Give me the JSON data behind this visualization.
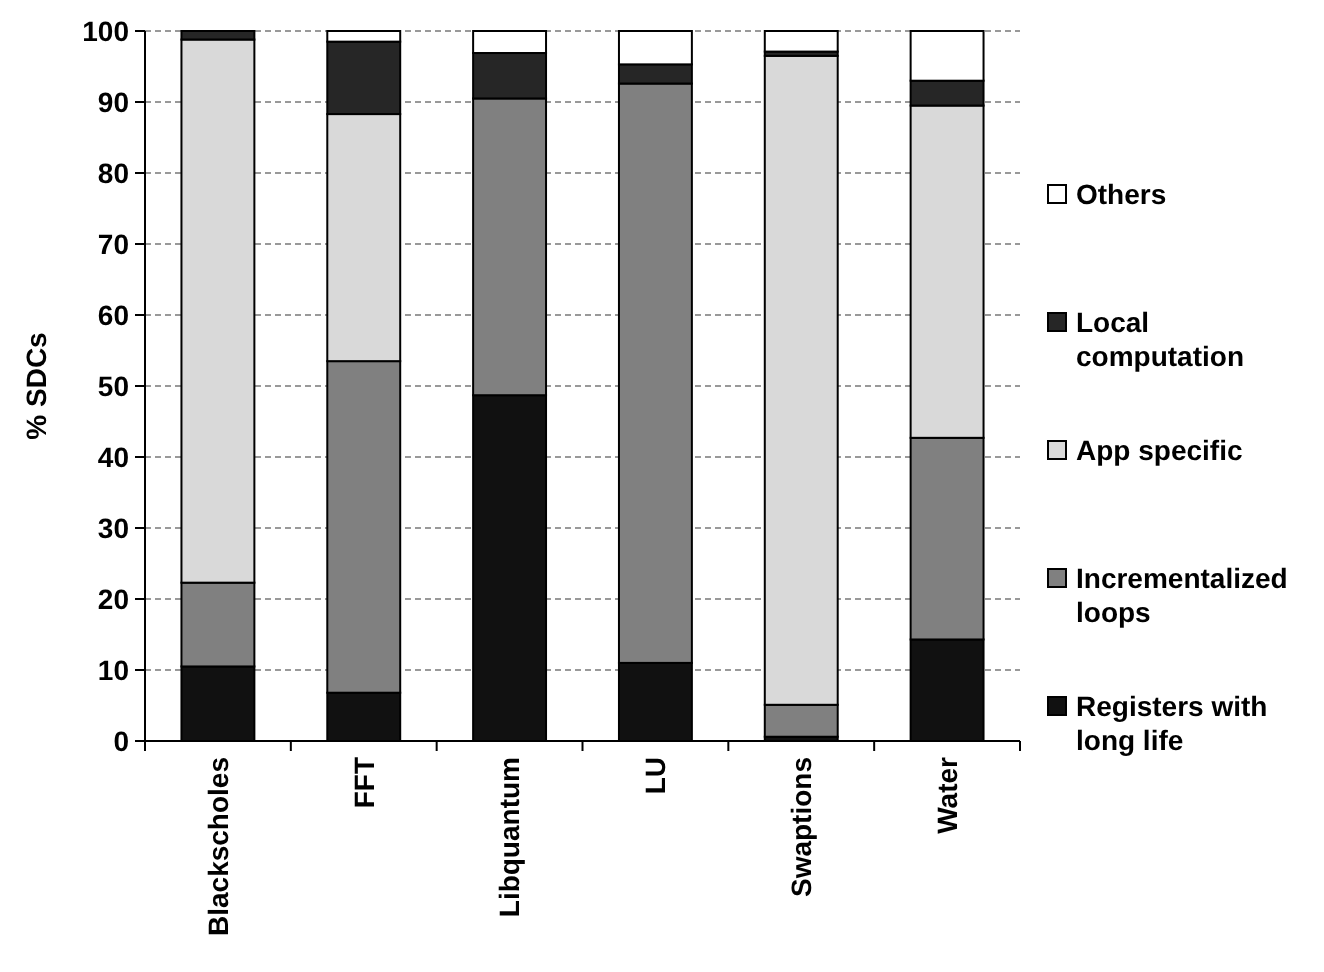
{
  "chart_data": {
    "type": "bar",
    "stacked": true,
    "ylabel": "% SDCs",
    "categories": [
      "Blackscholes",
      "FFT",
      "Libquantum",
      "LU",
      "Swaptions",
      "Water"
    ],
    "series": [
      {
        "name": "Registers with long life",
        "color": "#111111",
        "values": [
          10.5,
          6.8,
          48.7,
          11.0,
          0.6,
          14.3
        ]
      },
      {
        "name": "Incrementalized loops",
        "color": "#808080",
        "values": [
          11.8,
          46.7,
          41.8,
          81.6,
          4.5,
          28.4
        ]
      },
      {
        "name": "App specific",
        "color": "#d9d9d9",
        "values": [
          76.5,
          34.8,
          0,
          0,
          91.4,
          46.8
        ]
      },
      {
        "name": "Local computation",
        "color": "#262626",
        "values": [
          1.2,
          10.2,
          6.4,
          2.7,
          0.6,
          3.5
        ]
      },
      {
        "name": "Others",
        "color": "#ffffff",
        "values": [
          0,
          1.5,
          3.1,
          4.7,
          2.9,
          7.0
        ]
      }
    ],
    "ylim": [
      0,
      100
    ],
    "yticks": [
      0,
      10,
      20,
      30,
      40,
      50,
      60,
      70,
      80,
      90,
      100
    ],
    "grid": "y",
    "legend": "right"
  }
}
